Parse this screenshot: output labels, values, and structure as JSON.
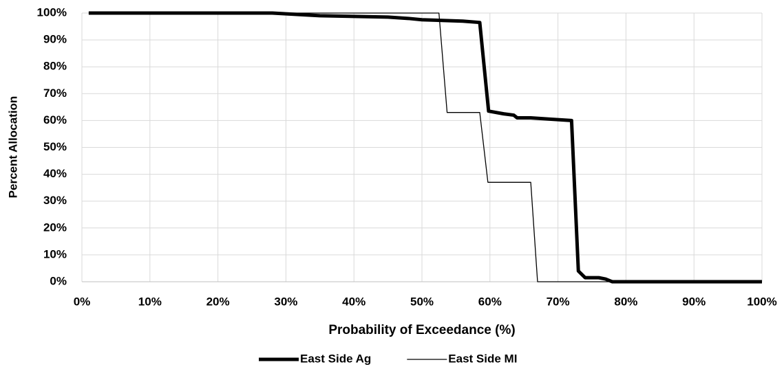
{
  "chart_data": {
    "type": "line",
    "x_label": "Probability of Exceedance (%)",
    "y_label": "Percent Allocation",
    "xlim": [
      0,
      100
    ],
    "ylim": [
      0,
      100
    ],
    "xticks": [
      {
        "value": 0,
        "label": "0%"
      },
      {
        "value": 10,
        "label": "10%"
      },
      {
        "value": 20,
        "label": "20%"
      },
      {
        "value": 30,
        "label": "30%"
      },
      {
        "value": 40,
        "label": "40%"
      },
      {
        "value": 50,
        "label": "50%"
      },
      {
        "value": 60,
        "label": "60%"
      },
      {
        "value": 70,
        "label": "70%"
      },
      {
        "value": 80,
        "label": "80%"
      },
      {
        "value": 90,
        "label": "90%"
      },
      {
        "value": 100,
        "label": "100%"
      }
    ],
    "yticks": [
      {
        "value": 0,
        "label": "0%"
      },
      {
        "value": 10,
        "label": "10%"
      },
      {
        "value": 20,
        "label": "20%"
      },
      {
        "value": 30,
        "label": "30%"
      },
      {
        "value": 40,
        "label": "40%"
      },
      {
        "value": 50,
        "label": "50%"
      },
      {
        "value": 60,
        "label": "60%"
      },
      {
        "value": 70,
        "label": "70%"
      },
      {
        "value": 80,
        "label": "80%"
      },
      {
        "value": 90,
        "label": "90%"
      },
      {
        "value": 100,
        "label": "100%"
      }
    ],
    "grid": true,
    "legend": "bottom",
    "series": [
      {
        "name": "East Side Ag",
        "color": "#000000",
        "width": 5,
        "x": [
          1,
          28,
          35,
          45,
          48,
          50,
          56,
          58.5,
          59.8,
          62,
          63.5,
          64,
          66,
          69,
          72,
          73,
          74,
          76,
          77,
          78,
          100
        ],
        "values": [
          100,
          100,
          99,
          98.5,
          98,
          97.5,
          97,
          96.5,
          63.5,
          62.5,
          62,
          61,
          61,
          60.5,
          60,
          4,
          1.5,
          1.5,
          1,
          0,
          0
        ]
      },
      {
        "name": "East Side MI",
        "color": "#000000",
        "width": 1.3,
        "x": [
          1,
          52.5,
          53.7,
          58.5,
          59.7,
          66,
          67,
          100
        ],
        "values": [
          100,
          100,
          63,
          63,
          37,
          37,
          0,
          0
        ]
      }
    ]
  }
}
